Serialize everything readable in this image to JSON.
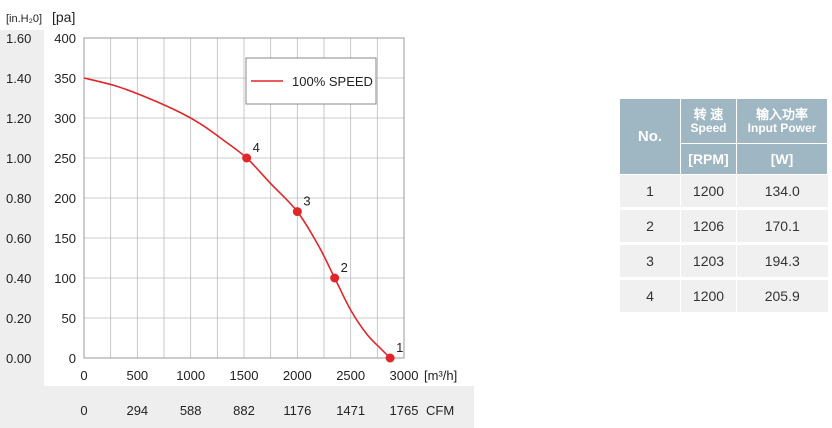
{
  "chart_data": {
    "type": "line",
    "y_unit_left": "[in.H₂0]",
    "y_unit_right": "[pa]",
    "x_unit": "[m³/h]",
    "x2_unit": "CFM",
    "x_ticks": [
      0,
      500,
      1000,
      1500,
      2000,
      2500,
      3000
    ],
    "x2_ticks": [
      "0",
      "294",
      "588",
      "882",
      "1176",
      "1471",
      "1765"
    ],
    "y_ticks_pa": [
      0,
      50,
      100,
      150,
      200,
      250,
      300,
      350,
      400
    ],
    "y_ticks_inh2o": [
      "0.00",
      "0.20",
      "0.40",
      "0.60",
      "0.80",
      "1.00",
      "1.20",
      "1.40",
      "1.60"
    ],
    "xlim": [
      0,
      3000
    ],
    "ylim": [
      0,
      400
    ],
    "grid": true,
    "legend_position": "top-right",
    "series": [
      {
        "name": "100% SPEED",
        "color": "#e0262b",
        "x": [
          0,
          300,
          600,
          900,
          1100,
          1300,
          1525,
          1750,
          2000,
          2200,
          2350,
          2500,
          2650,
          2780,
          2870
        ],
        "y": [
          350,
          340,
          325,
          307,
          292,
          273,
          250,
          218,
          183,
          140,
          100,
          60,
          30,
          12,
          0
        ]
      }
    ],
    "markers": [
      {
        "label": "4",
        "x": 1525,
        "y": 250
      },
      {
        "label": "3",
        "x": 2000,
        "y": 183
      },
      {
        "label": "2",
        "x": 2350,
        "y": 100
      },
      {
        "label": "1",
        "x": 2870,
        "y": 0
      }
    ]
  },
  "table": {
    "no_header": "No.",
    "speed_cn": "转 速",
    "speed_en": "Speed",
    "power_cn": "输入功率",
    "power_en": "Input Power",
    "speed_unit": "[RPM]",
    "power_unit": "[W]",
    "rows": [
      {
        "no": "1",
        "speed": "1200",
        "power": "134.0"
      },
      {
        "no": "2",
        "speed": "1206",
        "power": "170.1"
      },
      {
        "no": "3",
        "speed": "1203",
        "power": "194.3"
      },
      {
        "no": "4",
        "speed": "1200",
        "power": "205.9"
      }
    ]
  },
  "colors": {
    "curve": "#e0262b",
    "header_bg": "#9fb6c3",
    "row_bg": "#f0f0f0",
    "band_bg": "#eeeeee",
    "grid": "#bbbbbb"
  }
}
